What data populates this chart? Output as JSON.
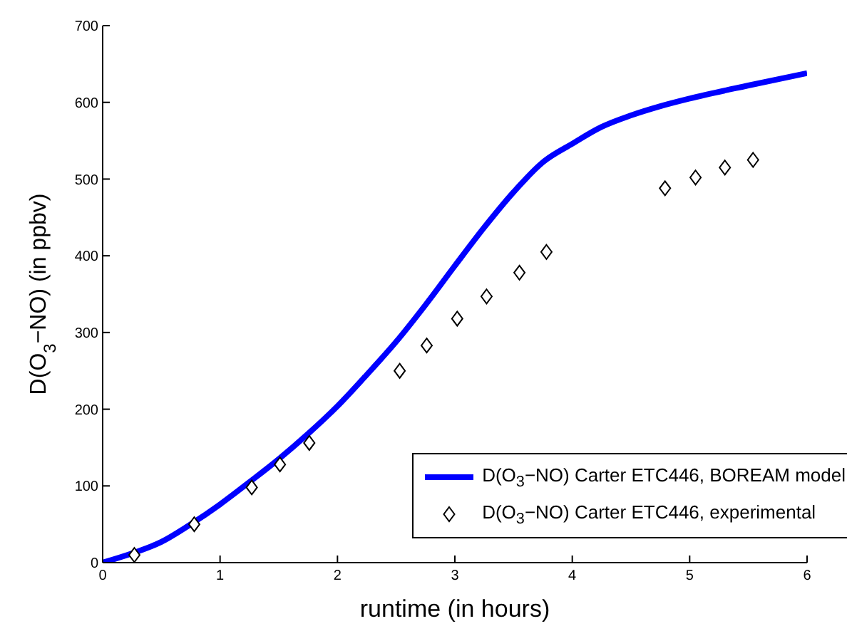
{
  "chart_data": {
    "type": "line",
    "xlabel": "runtime (in hours)",
    "ylabel": "D(O$_{3}$−NO) (in ppbv)",
    "xlim": [
      0,
      6
    ],
    "ylim": [
      0,
      700
    ],
    "xticks": [
      0,
      1,
      2,
      3,
      4,
      5,
      6
    ],
    "yticks": [
      0,
      100,
      200,
      300,
      400,
      500,
      600,
      700
    ],
    "grid": false,
    "legend": "bottom right",
    "series": [
      {
        "name": "D(O$_{3}$−NO) Carter ETC446, BOREAM model",
        "color": "#0000ff",
        "line_style": "solid",
        "marker": "none",
        "x": [
          0,
          0.25,
          0.5,
          0.75,
          1,
          1.25,
          1.5,
          1.75,
          2,
          2.25,
          2.5,
          2.75,
          3,
          3.25,
          3.5,
          3.75,
          4,
          4.25,
          4.5,
          4.75,
          5,
          5.5,
          6
        ],
        "values": [
          0,
          12,
          27,
          50,
          76,
          105,
          135,
          168,
          204,
          245,
          288,
          336,
          387,
          437,
          483,
          522,
          546,
          568,
          583,
          595,
          605,
          622,
          638
        ]
      },
      {
        "name": "D(O$_{3}$−NO) Carter ETC446, experimental",
        "type": "scatter",
        "color": "#000000",
        "marker": "diamond",
        "x": [
          0.27,
          0.78,
          1.27,
          1.51,
          1.76,
          2.53,
          2.76,
          3.02,
          3.27,
          3.55,
          3.78,
          4.79,
          5.05,
          5.3,
          5.54
        ],
        "values": [
          10,
          50,
          98,
          128,
          156,
          250,
          283,
          318,
          347,
          378,
          405,
          488,
          502,
          515,
          525
        ]
      }
    ]
  }
}
